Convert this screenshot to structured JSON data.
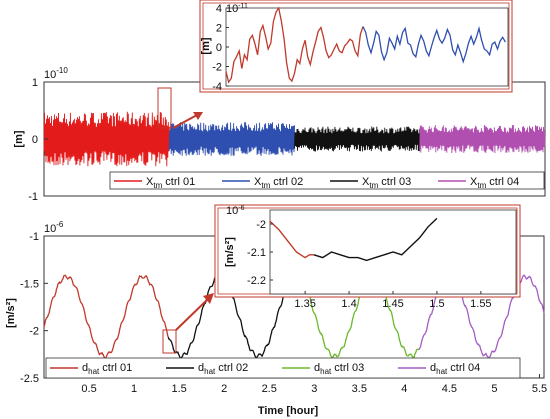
{
  "chart_data": [
    {
      "id": "top",
      "type": "line",
      "ylabel": "[m]",
      "y_exponent": "10",
      "y_exponent_power": "-10",
      "x_range": [
        0,
        5.6
      ],
      "ylim": [
        -1,
        1
      ],
      "yticks": [
        "1",
        "0",
        "-1"
      ],
      "grid": false,
      "series": [
        {
          "name": "X",
          "name_sub": "tm",
          "name_suffix": "ctrl 01",
          "color": "#e31b1b",
          "x_start": 0.0,
          "x_end": 1.4,
          "amplitude": 0.48
        },
        {
          "name": "X",
          "name_sub": "tm",
          "name_suffix": "ctrl 02",
          "color": "#2f4fb0",
          "x_start": 1.4,
          "x_end": 2.8,
          "amplitude": 0.3
        },
        {
          "name": "X",
          "name_sub": "tm",
          "name_suffix": "ctrl 03",
          "color": "#111111",
          "x_start": 2.8,
          "x_end": 4.2,
          "amplitude": 0.22
        },
        {
          "name": "X",
          "name_sub": "tm",
          "name_suffix": "ctrl 04",
          "color": "#b04fb0",
          "x_start": 4.2,
          "x_end": 5.6,
          "amplitude": 0.25
        }
      ],
      "legend_position": "bottom"
    },
    {
      "id": "top-inset",
      "type": "line",
      "ylabel": "[m]",
      "y_exponent": "10",
      "y_exponent_power": "-11",
      "ylim": [
        -4,
        4
      ],
      "yticks": [
        "4",
        "2",
        "0",
        "-2",
        "-4"
      ],
      "series": [
        {
          "color": "#c0392b",
          "values": [
            -2.5,
            -3.6,
            -3.2,
            -1.5,
            -1.0,
            -0.4,
            -2.2,
            -0.8,
            -1.3,
            0.8,
            1.2,
            0.3,
            -0.8,
            1.6,
            2.2,
            1.1,
            -0.2,
            0.4,
            2.6,
            3.6,
            4.0,
            2.7,
            0.9,
            -1.6,
            -3.2,
            -3.5,
            -2.7,
            -1.3,
            -1.7,
            -0.2,
            0.7,
            -1.0,
            -1.8,
            -0.5,
            0.5,
            1.6,
            2.0,
            1.0,
            -0.4,
            -1.1,
            -0.8,
            -0.2,
            0.3,
            -0.4,
            -0.6,
            0.1,
            0.4,
            0.8,
            0.6,
            -0.4,
            -0.9,
            1.3,
            2.1
          ]
        },
        {
          "color": "#2f4fb0",
          "values": [
            2.1,
            1.5,
            0.2,
            -0.6,
            0.4,
            1.6,
            1.2,
            -0.5,
            -1.3,
            -0.6,
            0.9,
            0.4,
            -0.2,
            1.1,
            0.3,
            1.5,
            1.9,
            0.4,
            0.2,
            -0.7,
            -1.0,
            0.3,
            1.2,
            0.6,
            -0.4,
            -0.9,
            0.1,
            1.0,
            1.7,
            0.8,
            0.4,
            0.9,
            1.8,
            1.2,
            -0.3,
            -0.8,
            0.2,
            -0.6,
            -1.5,
            -0.7,
            0.4,
            1.1,
            0.3,
            1.0,
            1.9,
            0.7,
            -0.2,
            -0.4,
            -0.8,
            0.3,
            0.5,
            -0.2,
            0.6,
            1.0,
            0.5
          ]
        }
      ]
    },
    {
      "id": "bottom",
      "type": "line",
      "xlabel": "Time [hour]",
      "ylabel": "[m/s²]",
      "y_exponent": "10",
      "y_exponent_power": "-6",
      "xlim": [
        0,
        5.55
      ],
      "ylim": [
        -2.5,
        -1
      ],
      "xticks": [
        "0.5",
        "1",
        "1.5",
        "2",
        "2.5",
        "3",
        "3.5",
        "4",
        "4.5",
        "5",
        "5.5"
      ],
      "yticks": [
        "-1",
        "-1.5",
        "-2",
        "-2.5"
      ],
      "series": [
        {
          "name": "d",
          "name_sub": "hat",
          "name_suffix": "ctrl 01",
          "color": "#c0392b",
          "x_start": 0.0,
          "x_end": 1.38
        },
        {
          "name": "d",
          "name_sub": "hat",
          "name_suffix": "ctrl 02",
          "color": "#111111",
          "x_start": 1.38,
          "x_end": 2.77
        },
        {
          "name": "d",
          "name_sub": "hat",
          "name_suffix": "ctrl 03",
          "color": "#6ab82b",
          "x_start": 2.77,
          "x_end": 4.16
        },
        {
          "name": "d",
          "name_sub": "hat",
          "name_suffix": "ctrl 04",
          "color": "#a45cc4",
          "x_start": 4.16,
          "x_end": 5.55
        }
      ],
      "signal": {
        "mean": -1.85,
        "amplitude": 0.42,
        "period_hours": 0.85,
        "phase_peak_hours": 1.1
      },
      "legend_position": "bottom"
    },
    {
      "id": "bottom-inset",
      "type": "line",
      "ylabel": "[m/s²]",
      "y_exponent": "10",
      "y_exponent_power": "-6",
      "xlim": [
        1.31,
        1.59
      ],
      "ylim": [
        -2.25,
        -1.95
      ],
      "xticks": [
        "1.35",
        "1.4",
        "1.45",
        "1.5",
        "1.55"
      ],
      "yticks": [
        "-2",
        "-2.1",
        "-2.2"
      ],
      "series": [
        {
          "color": "#c0392b",
          "x": [
            1.31,
            1.32,
            1.33,
            1.34,
            1.345,
            1.35,
            1.355,
            1.36
          ],
          "y": [
            -1.99,
            -2.02,
            -2.06,
            -2.1,
            -2.11,
            -2.12,
            -2.11,
            -2.11
          ]
        },
        {
          "color": "#111111",
          "x": [
            1.36,
            1.37,
            1.38,
            1.39,
            1.4,
            1.41,
            1.42,
            1.43,
            1.44,
            1.45,
            1.46,
            1.47,
            1.48,
            1.49,
            1.5
          ],
          "y": [
            -2.11,
            -2.12,
            -2.1,
            -2.11,
            -2.12,
            -2.12,
            -2.13,
            -2.12,
            -2.11,
            -2.1,
            -2.11,
            -2.08,
            -2.05,
            -2.01,
            -1.98
          ]
        }
      ]
    }
  ]
}
